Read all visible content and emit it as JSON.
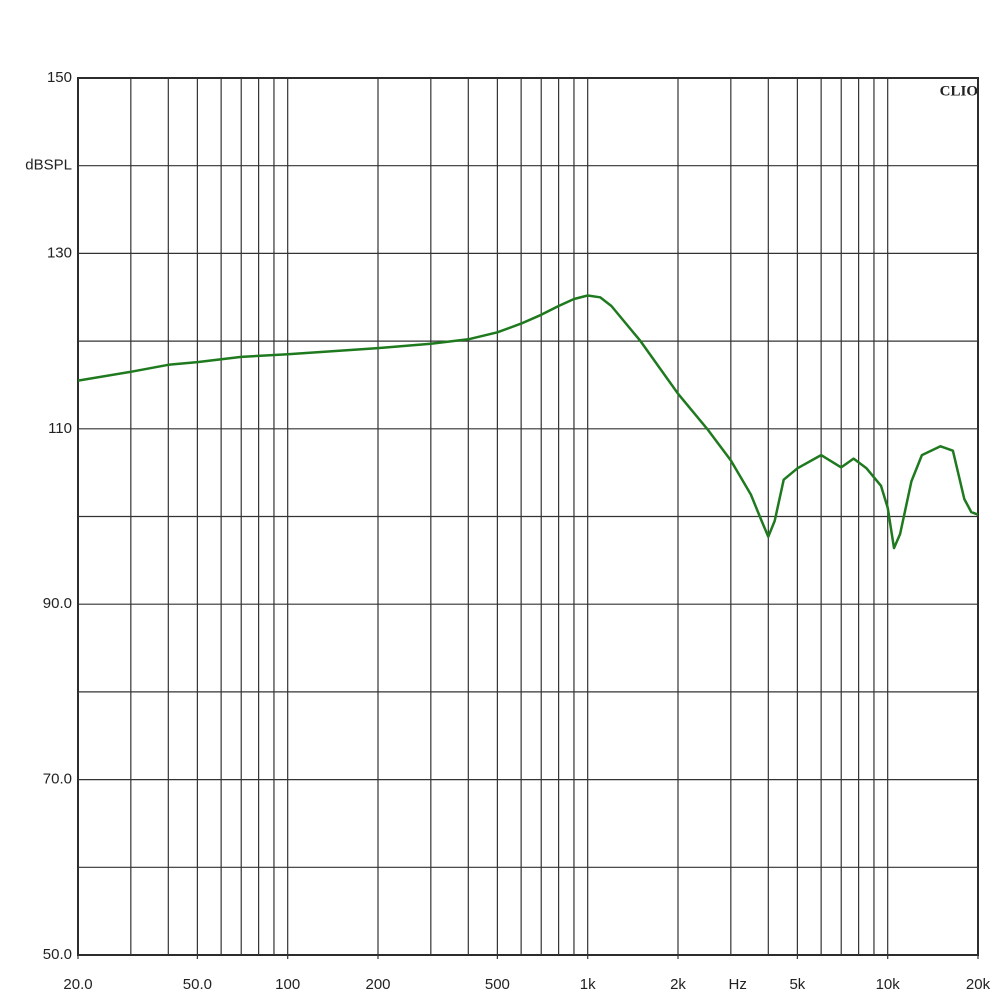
{
  "chart_data": {
    "type": "line",
    "ylabel": "dBSPL",
    "xlabel": "Hz",
    "annotation": "CLIO",
    "xscale": "log",
    "xlim": [
      20,
      20000
    ],
    "ylim": [
      50,
      150
    ],
    "xticks": [
      {
        "value": 20,
        "label": "20.0"
      },
      {
        "value": 50,
        "label": "50.0"
      },
      100,
      200,
      500,
      {
        "value": 1000,
        "label": "1k"
      },
      {
        "value": 2000,
        "label": "2k"
      },
      {
        "value": 5000,
        "label": "5k"
      },
      {
        "value": 10000,
        "label": "10k"
      },
      {
        "value": 20000,
        "label": "20k"
      }
    ],
    "xgrid": [
      20,
      30,
      40,
      50,
      60,
      70,
      80,
      90,
      100,
      200,
      300,
      400,
      500,
      600,
      700,
      800,
      900,
      1000,
      2000,
      3000,
      4000,
      5000,
      6000,
      7000,
      8000,
      9000,
      10000,
      20000
    ],
    "yticks": [
      {
        "value": 50,
        "label": "50.0"
      },
      {
        "value": 70,
        "label": "70.0"
      },
      {
        "value": 90,
        "label": "90.0"
      },
      110,
      130,
      150
    ],
    "ygrid": [
      60,
      80,
      100,
      120,
      140
    ],
    "grid": true,
    "series": [
      {
        "color": "#1f7a1f",
        "x": [
          20,
          30,
          40,
          50,
          70,
          100,
          200,
          300,
          400,
          500,
          600,
          700,
          800,
          900,
          1000,
          1100,
          1200,
          1500,
          2000,
          2500,
          3000,
          3500,
          3800,
          4000,
          4200,
          4500,
          5000,
          6000,
          7000,
          7700,
          8500,
          9500,
          10000,
          10500,
          11000,
          12000,
          13000,
          15000,
          16500,
          18000,
          19000,
          20000
        ],
        "values": [
          115.5,
          116.5,
          117.3,
          117.6,
          118.2,
          118.5,
          119.2,
          119.7,
          120.2,
          121,
          122,
          123,
          124,
          124.8,
          125.2,
          125,
          124,
          120,
          114,
          110,
          106.4,
          102.5,
          99.5,
          97.7,
          99.5,
          104.2,
          105.5,
          107,
          105.6,
          106.6,
          105.5,
          103.5,
          101,
          96.4,
          98,
          104,
          107,
          108,
          107.5,
          102,
          100.5,
          100.2
        ]
      }
    ]
  }
}
